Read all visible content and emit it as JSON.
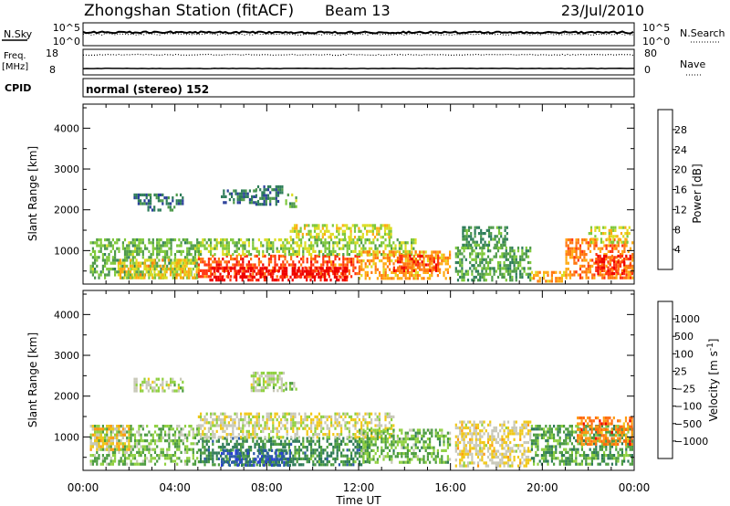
{
  "header": {
    "station": "Zhongshan Station (fitACF)",
    "beam": "Beam 13",
    "date": "23/Jul/2010"
  },
  "top_panels": {
    "nsky_label": "N.Sky",
    "nsky_ticks": [
      "10^5",
      "10^0"
    ],
    "nsearch_label": "N.Search",
    "nsearch_ticks": [
      "10^5",
      "10^0"
    ],
    "freq_label_1": "Freq.",
    "freq_label_2": "[MHz]",
    "freq_ticks": [
      "18",
      "8"
    ],
    "nave_label": "Nave",
    "nave_ticks": [
      "80",
      "0"
    ],
    "cpid_label": "CPID",
    "cpid_text": "normal (stereo) 152"
  },
  "colors": {
    "power": [
      "#1a1aff",
      "#2a3f99",
      "#2e7d5a",
      "#4e9a4a",
      "#7ec83a",
      "#dddd22",
      "#ffaa11",
      "#ff7711",
      "#ff3311",
      "#ee0000"
    ],
    "velocity": [
      "#2a3ed8",
      "#2a58a8",
      "#2e7a58",
      "#4c9c40",
      "#8fd040",
      "#c8c8b8",
      "#f0c818",
      "#ff9910",
      "#ff6a10",
      "#ee0000"
    ]
  },
  "chart_data": [
    {
      "type": "heatmap",
      "ylabel": "Slant Range [km]",
      "xlabel": "Time UT",
      "x_ticks": [
        "00:00",
        "04:00",
        "08:00",
        "12:00",
        "16:00",
        "20:00",
        "00:00"
      ],
      "y_ticks": [
        1000,
        2000,
        3000,
        4000
      ],
      "xlim_hours": [
        0,
        24
      ],
      "ylim_km": [
        180,
        4590
      ],
      "colorbar": {
        "label": "Power [dB]",
        "ticks": [
          "28",
          "24",
          "20",
          "16",
          "12",
          "8",
          "4"
        ],
        "range": [
          0,
          30
        ]
      },
      "regions": [
        {
          "t0": 0.3,
          "t1": 5.0,
          "r0": 350,
          "r1": 1300,
          "val": 12
        },
        {
          "t0": 1.5,
          "t1": 5.0,
          "r0": 350,
          "r1": 800,
          "val": 18
        },
        {
          "t0": 2.2,
          "t1": 4.3,
          "r0": 2150,
          "r1": 2400,
          "val": 7
        },
        {
          "t0": 2.8,
          "t1": 4.0,
          "r0": 2000,
          "r1": 2100,
          "val": 9
        },
        {
          "t0": 6.0,
          "t1": 7.5,
          "r0": 2150,
          "r1": 2500,
          "val": 7
        },
        {
          "t0": 7.5,
          "t1": 8.7,
          "r0": 2150,
          "r1": 2600,
          "val": 7
        },
        {
          "t0": 8.8,
          "t1": 9.3,
          "r0": 2100,
          "r1": 2400,
          "val": 12
        },
        {
          "t0": 5.0,
          "t1": 12.0,
          "r0": 350,
          "r1": 900,
          "val": 24
        },
        {
          "t0": 5.5,
          "t1": 11.5,
          "r0": 250,
          "r1": 600,
          "val": 29
        },
        {
          "t0": 5.0,
          "t1": 14.5,
          "r0": 900,
          "r1": 1300,
          "val": 14
        },
        {
          "t0": 9.0,
          "t1": 13.5,
          "r0": 1300,
          "r1": 1650,
          "val": 16
        },
        {
          "t0": 12.0,
          "t1": 16.0,
          "r0": 350,
          "r1": 1000,
          "val": 20
        },
        {
          "t0": 13.5,
          "t1": 15.5,
          "r0": 500,
          "r1": 900,
          "val": 25
        },
        {
          "t0": 16.2,
          "t1": 19.5,
          "r0": 300,
          "r1": 1100,
          "val": 11
        },
        {
          "t0": 16.5,
          "t1": 18.5,
          "r0": 1100,
          "r1": 1600,
          "val": 10
        },
        {
          "t0": 19.5,
          "t1": 21.0,
          "r0": 250,
          "r1": 500,
          "val": 20
        },
        {
          "t0": 21.0,
          "t1": 23.9,
          "r0": 350,
          "r1": 1300,
          "val": 22
        },
        {
          "t0": 22.0,
          "t1": 23.8,
          "r0": 1200,
          "r1": 1600,
          "val": 16
        },
        {
          "t0": 22.3,
          "t1": 23.9,
          "r0": 400,
          "r1": 900,
          "val": 26
        }
      ]
    },
    {
      "type": "heatmap",
      "ylabel": "Slant Range [km]",
      "xlabel": "Time UT",
      "x_ticks": [
        "00:00",
        "04:00",
        "08:00",
        "12:00",
        "16:00",
        "20:00",
        "00:00"
      ],
      "y_ticks": [
        1000,
        2000,
        3000,
        4000
      ],
      "xlim_hours": [
        0,
        24
      ],
      "ylim_km": [
        180,
        4590
      ],
      "colorbar": {
        "label": "Velocity [m s^-1]",
        "ticks": [
          "1000",
          "500",
          "100",
          "25",
          "−25",
          "−100",
          "−500",
          "−1000"
        ],
        "range": [
          -1000,
          1000
        ]
      },
      "regions": [
        {
          "t0": 0.3,
          "t1": 5.0,
          "r0": 350,
          "r1": 1300,
          "val": -150
        },
        {
          "t0": 0.3,
          "t1": 2.0,
          "r0": 700,
          "r1": 1300,
          "val": 300
        },
        {
          "t0": 2.2,
          "t1": 4.3,
          "r0": 2100,
          "r1": 2450,
          "val": 0
        },
        {
          "t0": 7.3,
          "t1": 8.7,
          "r0": 2150,
          "r1": 2600,
          "val": 0
        },
        {
          "t0": 8.8,
          "t1": 9.3,
          "r0": 2150,
          "r1": 2350,
          "val": -60
        },
        {
          "t0": 5.0,
          "t1": 12.5,
          "r0": 300,
          "r1": 1000,
          "val": -400
        },
        {
          "t0": 6.0,
          "t1": 9.0,
          "r0": 300,
          "r1": 700,
          "val": -700
        },
        {
          "t0": 5.0,
          "t1": 13.5,
          "r0": 1000,
          "r1": 1600,
          "val": 120
        },
        {
          "t0": 12.0,
          "t1": 16.0,
          "r0": 400,
          "r1": 1200,
          "val": -200
        },
        {
          "t0": 16.2,
          "t1": 19.5,
          "r0": 300,
          "r1": 1400,
          "val": 200
        },
        {
          "t0": 19.5,
          "t1": 23.9,
          "r0": 300,
          "r1": 1300,
          "val": -300
        },
        {
          "t0": 21.5,
          "t1": 23.9,
          "r0": 800,
          "r1": 1500,
          "val": 600
        }
      ]
    }
  ]
}
